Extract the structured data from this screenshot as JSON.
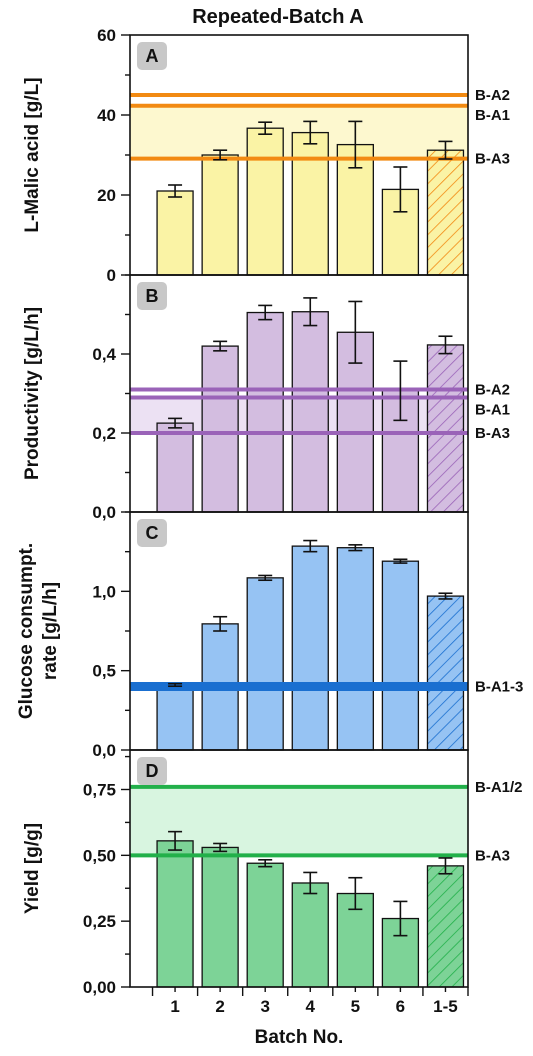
{
  "title": "Repeated-Batch A",
  "x_axis_title": "Batch No.",
  "categories": [
    "1",
    "2",
    "3",
    "4",
    "5",
    "6",
    "1-5"
  ],
  "chart_data": [
    {
      "type": "bar",
      "panel": "A",
      "ylabel": [
        "L-Malic acid [g/L]"
      ],
      "ylim": [
        0,
        60
      ],
      "yticks": [
        0,
        20,
        40,
        60
      ],
      "ytick_labels": [
        "0",
        "20",
        "40",
        "60"
      ],
      "colors": {
        "bar": "#faf3a5",
        "line": "#f28a12",
        "band": "#fdf8cf"
      },
      "hatched_last": true,
      "values": [
        21,
        30,
        36.7,
        35.6,
        32.6,
        21.4,
        31.2
      ],
      "errors": [
        1.5,
        1.2,
        1.5,
        2.8,
        5.8,
        5.6,
        2.2
      ],
      "ref_lines": [
        {
          "label": "B-A2",
          "value": 45
        },
        {
          "label": "B-A1",
          "value": 42.3
        },
        {
          "label": "B-A3",
          "value": 29.1
        }
      ],
      "band": [
        29.1,
        42.3
      ]
    },
    {
      "type": "bar",
      "panel": "B",
      "ylabel": [
        "Productivity [g/L/h]"
      ],
      "ylim": [
        0,
        0.6
      ],
      "yticks": [
        0,
        0.2,
        0.4
      ],
      "ytick_labels": [
        "0,0",
        "0,2",
        "0,4"
      ],
      "colors": {
        "bar": "#d3bde0",
        "line": "#9a63b8",
        "band": "#ece1f3"
      },
      "hatched_last": true,
      "values": [
        0.225,
        0.42,
        0.505,
        0.507,
        0.455,
        0.307,
        0.423
      ],
      "errors": [
        0.012,
        0.012,
        0.018,
        0.035,
        0.078,
        0.075,
        0.022
      ],
      "ref_lines": [
        {
          "label": "B-A2",
          "value": 0.31
        },
        {
          "label": "B-A1",
          "value": 0.29
        },
        {
          "label": "B-A3",
          "value": 0.2
        }
      ],
      "band": [
        0.2,
        0.29
      ]
    },
    {
      "type": "bar",
      "panel": "C",
      "ylabel": [
        "Glucose consumpt.",
        "rate [g/L/h]"
      ],
      "ylim": [
        0,
        1.5
      ],
      "yticks": [
        0,
        0.5,
        1.0
      ],
      "ytick_labels": [
        "0,0",
        "0,5",
        "1,0"
      ],
      "colors": {
        "bar": "#96c3f3",
        "line": "#1a6fd0",
        "band": ""
      },
      "hatched_last": true,
      "values": [
        0.41,
        0.795,
        1.085,
        1.285,
        1.275,
        1.19,
        0.97
      ],
      "errors": [
        0.008,
        0.045,
        0.015,
        0.035,
        0.018,
        0.012,
        0.018
      ],
      "ref_lines": [
        {
          "label": "B-A1-3",
          "value": 0.4,
          "thick": true
        }
      ],
      "band": null
    },
    {
      "type": "bar",
      "panel": "D",
      "ylabel": [
        "Yield [g/g]"
      ],
      "ylim": [
        0,
        0.9
      ],
      "yticks": [
        0,
        0.25,
        0.5,
        0.75
      ],
      "ytick_labels": [
        "0,00",
        "0,25",
        "0,50",
        "0,75"
      ],
      "colors": {
        "bar": "#7dd397",
        "line": "#22b04a",
        "band": "#d8f5e0"
      },
      "hatched_last": true,
      "values": [
        0.555,
        0.53,
        0.47,
        0.395,
        0.355,
        0.26,
        0.46
      ],
      "errors": [
        0.035,
        0.015,
        0.013,
        0.04,
        0.06,
        0.065,
        0.03
      ],
      "ref_lines": [
        {
          "label": "B-A1/2",
          "value": 0.76
        },
        {
          "label": "B-A3",
          "value": 0.5
        }
      ],
      "band": [
        0.5,
        0.76
      ]
    }
  ]
}
